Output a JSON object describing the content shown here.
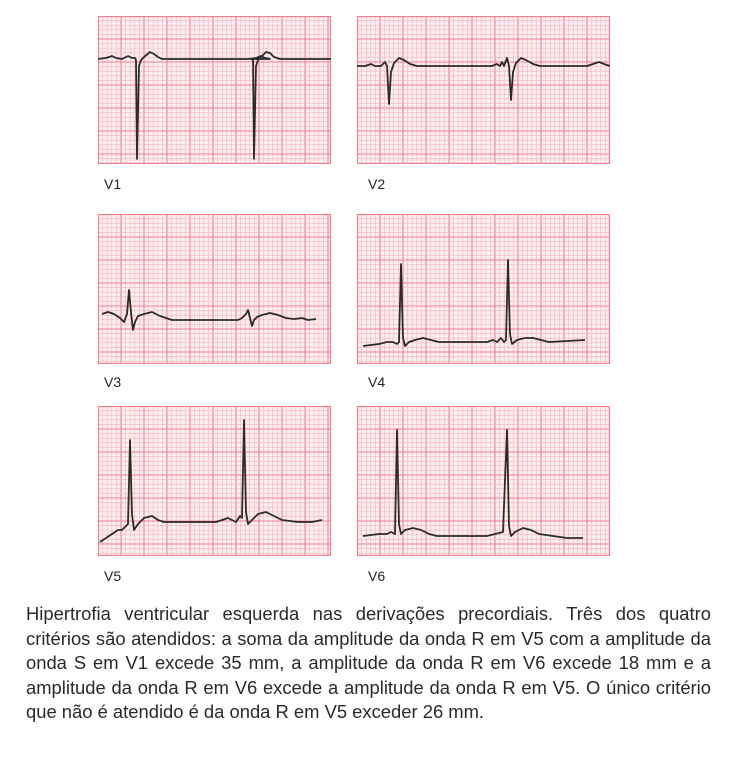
{
  "figure": {
    "leads": [
      {
        "id": "V1",
        "label": "V1"
      },
      {
        "id": "V2",
        "label": "V2"
      },
      {
        "id": "V3",
        "label": "V3"
      },
      {
        "id": "V4",
        "label": "V4"
      },
      {
        "id": "V5",
        "label": "V5"
      },
      {
        "id": "V6",
        "label": "V6"
      }
    ],
    "colors": {
      "grid_minor": "#f6b3bd",
      "grid_major": "#ef7f8e",
      "paper": "#fdeff1",
      "trace": "#2b2b2b"
    }
  },
  "caption": "Hipertrofia ventricular esquerda nas derivações precordiais. Três dos quatro critérios são atendidos: a soma da amplitude da onda R em V5 com a amplitude da onda S em V1 excede 35 mm, a amplitude da onda R em V6 excede 18 mm e a amplitude da onda R em V6 excede a amplitude da onda R em V5. O único critério que não é atendido é da onda R em V5 exceder 26 mm."
}
